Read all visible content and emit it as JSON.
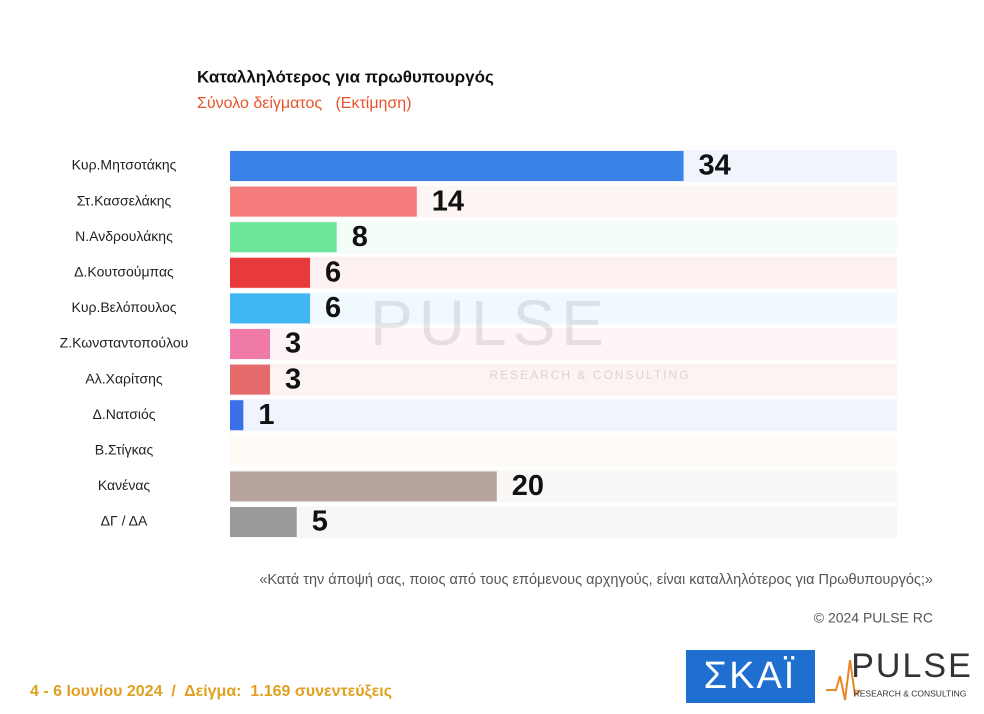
{
  "chart_data": {
    "type": "bar",
    "orientation": "horizontal",
    "title": "Καταλληλότερος για πρωθυπουργός",
    "subtitle": "Σύνολο δείγματος   (Εκτίμηση)",
    "categories": [
      "Κυρ.Μητσοτάκης",
      "Στ.Κασσελάκης",
      "Ν.Ανδρουλάκης",
      "Δ.Κουτσούμπας",
      "Κυρ.Βελόπουλος",
      "Ζ.Κωνσταντοπούλου",
      "Αλ.Χαρίτσης",
      "Δ.Νατσιός",
      "Β.Στίγκας",
      "Κανένας",
      "ΔΓ / ΔΑ"
    ],
    "values": [
      34,
      14,
      8,
      6,
      6,
      3,
      3,
      1,
      null,
      20,
      5
    ],
    "colors": [
      "#3b82e8",
      "#f47c7c",
      "#6ee69a",
      "#e83a3a",
      "#3fb6f2",
      "#f07aa8",
      "#e36b6b",
      "#3a6fe8",
      "#f5c89a",
      "#b8a49e",
      "#9a9a9a"
    ],
    "xlim": [
      0,
      50
    ]
  },
  "question": "«Κατά την άποψή σας, ποιος από τους επόμενους αρχηγούς, είναι καταλληλότερος για Πρωθυπουργός;»",
  "copyright": "© 2024 PULSE RC",
  "footer": "4 - 6 Ιουνίου 2024  /  Δείγμα:  1.169 συνεντεύξεις",
  "logos": {
    "skai": "ΣΚΑΪ",
    "pulse": "PULSE",
    "pulse_tagline": "RESEARCH & CONSULTING"
  }
}
